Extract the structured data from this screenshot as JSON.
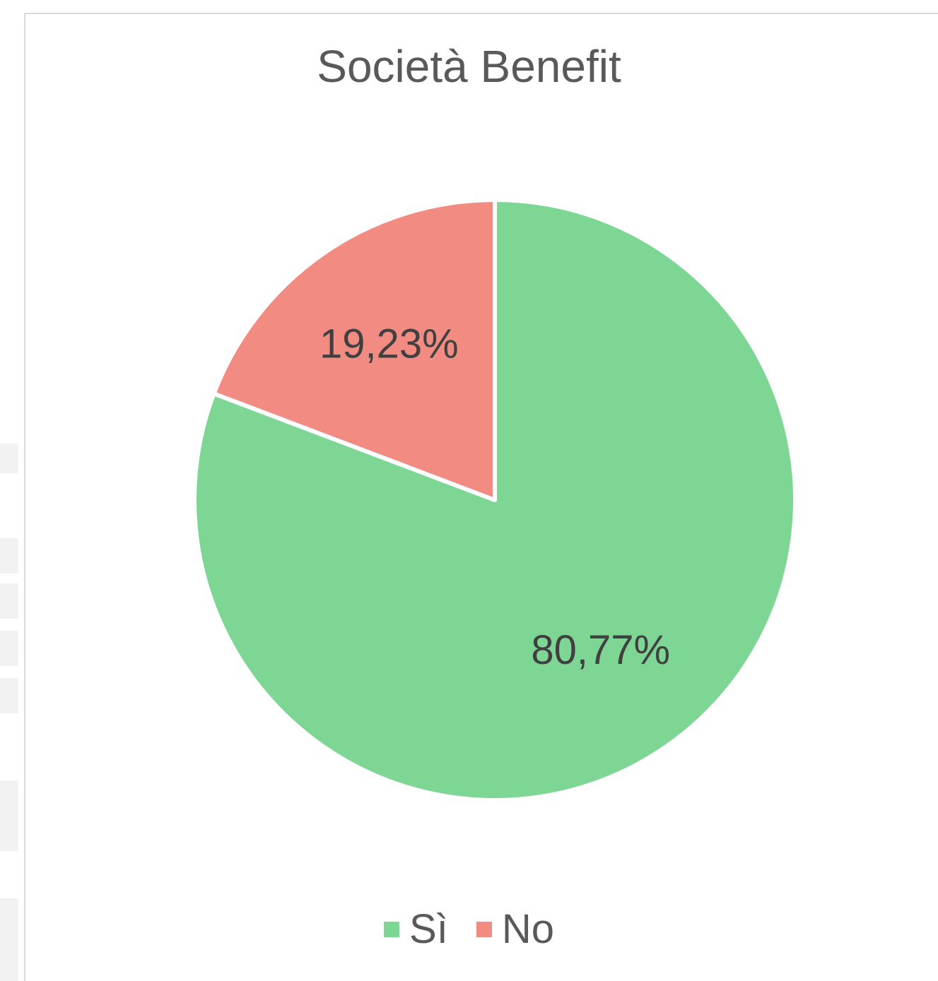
{
  "chart_data": {
    "type": "pie",
    "title": "Società Benefit",
    "categories": [
      "Sì",
      "No"
    ],
    "values": [
      80.77,
      19.23
    ],
    "data_labels": [
      "80,77%",
      "19,23%"
    ],
    "colors": [
      "#7dd694",
      "#f28b82"
    ],
    "legend": {
      "position": "bottom",
      "entries": [
        "Sì",
        "No"
      ]
    }
  }
}
